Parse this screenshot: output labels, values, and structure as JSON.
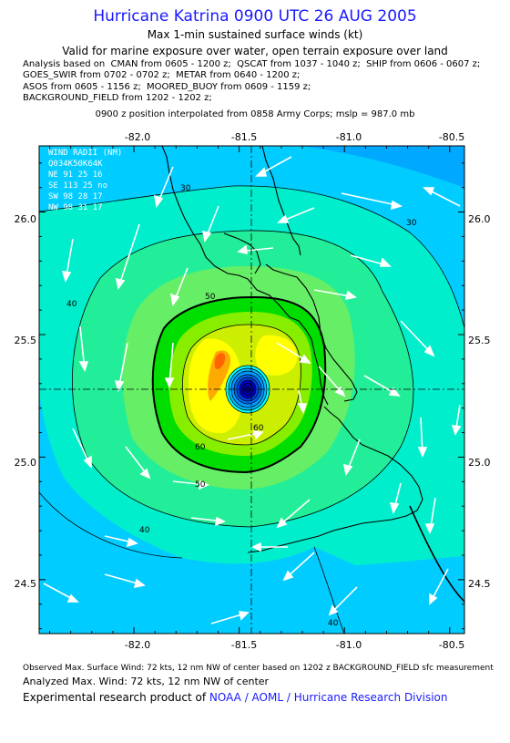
{
  "header": {
    "title": "Hurricane Katrina 0900 UTC 26 AUG 2005",
    "subtitle1": "Max 1-min sustained surface winds (kt)",
    "subtitle2": "Valid for marine exposure over water, open terrain exposure over land",
    "analysis_lines": [
      "Analysis based on  CMAN from 0605 - 1200 z;  QSCAT from 1037 - 1040 z;  SHIP from 0606 - 0607 z;",
      "GOES_SWIR from 0702 - 0702 z;  METAR from 0640 - 1200 z;",
      "ASOS from 0605 - 1156 z;  MOORED_BUOY from 0609 - 1159 z;",
      "BACKGROUND_FIELD from 1202 - 1202 z;"
    ],
    "position_line": "0900 z position interpolated from 0858 Army Corps; mslp = 987.0 mb"
  },
  "map": {
    "lon_ticks": [
      "-82.0",
      "-81.5",
      "-81.0",
      "-80.5"
    ],
    "lat_ticks": [
      "26.0",
      "25.5",
      "25.0",
      "24.5"
    ],
    "lon_range": [
      -82.45,
      -80.43
    ],
    "lat_range": [
      24.28,
      26.27
    ],
    "center": {
      "lon": -81.45,
      "lat": 25.29
    },
    "contour_labels": [
      "30",
      "30",
      "40",
      "40",
      "40",
      "50",
      "50",
      "60",
      "60"
    ],
    "wind_radii": {
      "title": "WIND RADII (NM)",
      "header": "Q034K50K64K",
      "rows": [
        "NE  91  25  16",
        "SE 113  25  no",
        "SW  98  28  17",
        "NW  98  31  17"
      ]
    },
    "colors": {
      "w20": "#00ccff",
      "w30": "#00eecc",
      "w40": "#22ee99",
      "w45": "#66ee66",
      "w50": "#00dd00",
      "w55": "#88ee00",
      "w60": "#ccee00",
      "w65": "#ffff00",
      "w70": "#ffaa00",
      "w72": "#ff6600",
      "eye": "#0000cc",
      "topright": "#00a8ff"
    }
  },
  "footer": {
    "observed": "Observed Max. Surface Wind: 72 kts, 12 nm NW of center based on 1202 z BACKGROUND_FIELD sfc measurement",
    "analyzed": "Analyzed Max. Wind: 72 kts, 12 nm NW of center",
    "product_prefix": "Experimental research product of ",
    "product_org": "NOAA / AOML / Hurricane Research Division"
  }
}
